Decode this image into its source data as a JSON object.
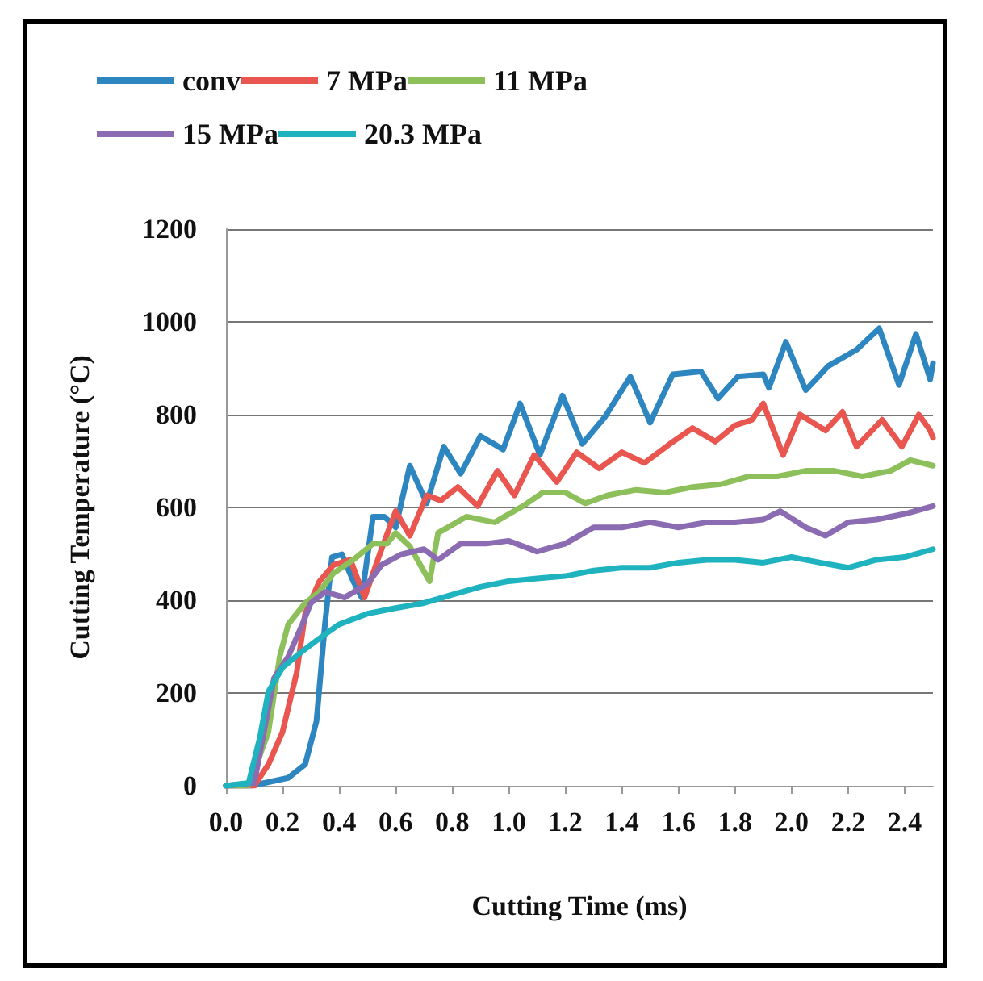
{
  "chart_data": {
    "type": "line",
    "xlabel": "Cutting Time (ms)",
    "ylabel": "Cutting Temperature (°C)",
    "xlim": [
      0,
      2.5
    ],
    "xticks": [
      {
        "value": 0,
        "label": "0.0"
      },
      {
        "value": 0.2,
        "label": "0.2"
      },
      {
        "value": 0.4,
        "label": "0.4"
      },
      {
        "value": 0.6,
        "label": "0.6"
      },
      {
        "value": 0.8,
        "label": "0.8"
      },
      {
        "value": 1.0,
        "label": "1.0"
      },
      {
        "value": 1.2,
        "label": "1.2"
      },
      {
        "value": 1.4,
        "label": "1.4"
      },
      {
        "value": 1.6,
        "label": "1.6"
      },
      {
        "value": 1.8,
        "label": "1.8"
      },
      {
        "value": 2.0,
        "label": "2.0"
      },
      {
        "value": 2.2,
        "label": "2.2"
      },
      {
        "value": 2.4,
        "label": "2.4"
      }
    ],
    "ylim": [
      0,
      1200
    ],
    "yticks": [
      0,
      200,
      400,
      600,
      800,
      1000,
      1200
    ],
    "grid": "y",
    "legend": "top",
    "marker": "none",
    "line_style": "solid",
    "series": [
      {
        "name": "conv",
        "color": "#2e86c1",
        "x": [
          0,
          0.09,
          0.22,
          0.28,
          0.32,
          0.35,
          0.375,
          0.41,
          0.45,
          0.48,
          0.52,
          0.56,
          0.6,
          0.65,
          0.71,
          0.77,
          0.83,
          0.9,
          0.98,
          1.04,
          1.11,
          1.19,
          1.26,
          1.34,
          1.43,
          1.5,
          1.58,
          1.68,
          1.74,
          1.81,
          1.9,
          1.92,
          1.98,
          2.05,
          2.13,
          2.23,
          2.31,
          2.38,
          2.44,
          2.49,
          2.5
        ],
        "values": [
          0,
          0,
          17,
          46,
          139,
          348,
          493,
          499,
          441,
          406,
          580,
          580,
          557,
          690,
          609,
          731,
          673,
          754,
          725,
          824,
          713,
          841,
          737,
          795,
          882,
          783,
          887,
          893,
          835,
          882,
          887,
          858,
          957,
          853,
          905,
          940,
          986,
          864,
          974,
          876,
          911
        ]
      },
      {
        "name": "7 MPa",
        "color": "#e8564f",
        "x": [
          0,
          0.1,
          0.15,
          0.2,
          0.25,
          0.28,
          0.33,
          0.38,
          0.44,
          0.49,
          0.55,
          0.6,
          0.65,
          0.71,
          0.76,
          0.82,
          0.89,
          0.96,
          1.02,
          1.09,
          1.17,
          1.24,
          1.32,
          1.4,
          1.48,
          1.57,
          1.65,
          1.73,
          1.8,
          1.86,
          1.9,
          1.97,
          2.03,
          2.12,
          2.18,
          2.23,
          2.32,
          2.39,
          2.45,
          2.49,
          2.5
        ],
        "values": [
          0,
          0,
          46,
          116,
          244,
          371,
          440,
          476,
          487,
          406,
          510,
          592,
          539,
          626,
          615,
          644,
          603,
          679,
          626,
          713,
          655,
          719,
          684,
          719,
          696,
          737,
          771,
          742,
          777,
          789,
          824,
          713,
          800,
          766,
          806,
          731,
          789,
          731,
          800,
          766,
          750
        ]
      },
      {
        "name": "11 MPa",
        "color": "#8dbf5a",
        "x": [
          0,
          0.08,
          0.15,
          0.19,
          0.22,
          0.28,
          0.33,
          0.38,
          0.45,
          0.52,
          0.57,
          0.6,
          0.65,
          0.72,
          0.75,
          0.85,
          0.95,
          1.05,
          1.12,
          1.2,
          1.27,
          1.35,
          1.45,
          1.55,
          1.65,
          1.75,
          1.85,
          1.95,
          2.05,
          2.15,
          2.25,
          2.35,
          2.42,
          2.5
        ],
        "values": [
          0,
          0,
          116,
          278,
          348,
          394,
          418,
          458,
          487,
          522,
          522,
          545,
          516,
          441,
          545,
          580,
          568,
          603,
          632,
          632,
          609,
          626,
          638,
          632,
          644,
          650,
          667,
          667,
          679,
          679,
          667,
          679,
          702,
          690
        ]
      },
      {
        "name": "15 MPa",
        "color": "#8b6bb1",
        "x": [
          0,
          0.1,
          0.17,
          0.22,
          0.27,
          0.3,
          0.35,
          0.42,
          0.5,
          0.55,
          0.62,
          0.7,
          0.75,
          0.83,
          0.92,
          1.0,
          1.1,
          1.2,
          1.3,
          1.4,
          1.5,
          1.6,
          1.7,
          1.8,
          1.9,
          1.96,
          2.05,
          2.12,
          2.2,
          2.3,
          2.4,
          2.5
        ],
        "values": [
          0,
          6,
          232,
          278,
          348,
          394,
          418,
          406,
          435,
          476,
          499,
          510,
          487,
          522,
          522,
          528,
          505,
          522,
          557,
          557,
          568,
          557,
          568,
          568,
          574,
          592,
          557,
          539,
          568,
          574,
          586,
          603
        ]
      },
      {
        "name": "20.3 MPa",
        "color": "#1fb3bf",
        "x": [
          0,
          0.08,
          0.12,
          0.15,
          0.2,
          0.27,
          0.32,
          0.4,
          0.5,
          0.6,
          0.7,
          0.8,
          0.9,
          1.0,
          1.1,
          1.2,
          1.3,
          1.4,
          1.5,
          1.6,
          1.7,
          1.8,
          1.9,
          2.0,
          2.1,
          2.2,
          2.3,
          2.4,
          2.5
        ],
        "values": [
          0,
          6,
          104,
          203,
          255,
          290,
          313,
          348,
          371,
          383,
          394,
          412,
          429,
          441,
          447,
          452,
          464,
          470,
          470,
          481,
          487,
          487,
          481,
          493,
          481,
          470,
          487,
          493,
          510
        ]
      }
    ]
  }
}
